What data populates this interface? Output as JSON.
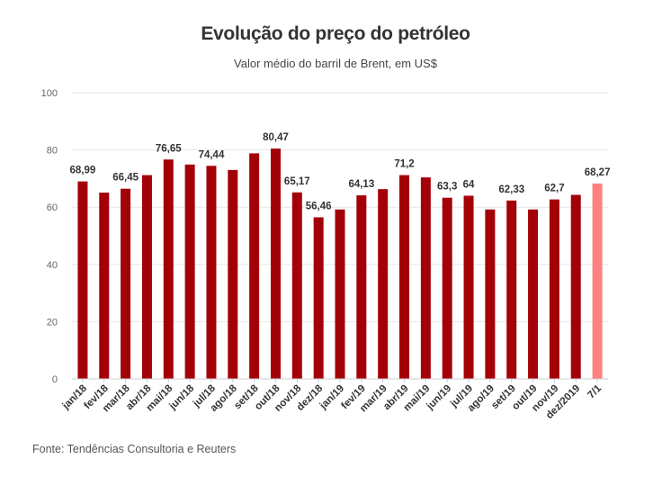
{
  "chart_data": {
    "type": "bar",
    "title": "Evolução do preço do petróleo",
    "subtitle": "Valor médio do barril de Brent, em US$",
    "source": "Fonte: Tendências Consultoria e Reuters",
    "ylim": [
      0,
      100
    ],
    "yticks": [
      0,
      20,
      40,
      60,
      80,
      100
    ],
    "grid": true,
    "categories": [
      "jan/18",
      "fev/18",
      "mar/18",
      "abr/18",
      "mai/18",
      "jun/18",
      "jul/18",
      "ago/18",
      "set/18",
      "out/18",
      "nov/18",
      "dez/18",
      "jan/19",
      "fev/19",
      "mar/19",
      "abr/19",
      "mai/19",
      "jun/19",
      "jul/19",
      "ago/19",
      "set/19",
      "out/19",
      "nov/19",
      "dez/2019",
      "7/1"
    ],
    "values": [
      68.99,
      65.1,
      66.45,
      71.2,
      76.65,
      74.9,
      74.44,
      73.0,
      78.8,
      80.47,
      65.17,
      56.46,
      59.2,
      64.13,
      66.3,
      71.2,
      70.4,
      63.3,
      64,
      59.2,
      62.33,
      59.2,
      62.7,
      64.3,
      68.27
    ],
    "data_labels": [
      "68,99",
      "",
      "66,45",
      "",
      "76,65",
      "",
      "74,44",
      "",
      "",
      "80,47",
      "65,17",
      "56,46",
      "",
      "64,13",
      "",
      "71,2",
      "",
      "63,3",
      "64",
      "",
      "62,33",
      "",
      "62,7",
      "",
      "68,27"
    ],
    "colors": {
      "bar": "#a30008",
      "highlight": "#ff8080",
      "grid": "#e6e6e6",
      "axis": "#cccccc"
    },
    "highlight_index": 24
  }
}
